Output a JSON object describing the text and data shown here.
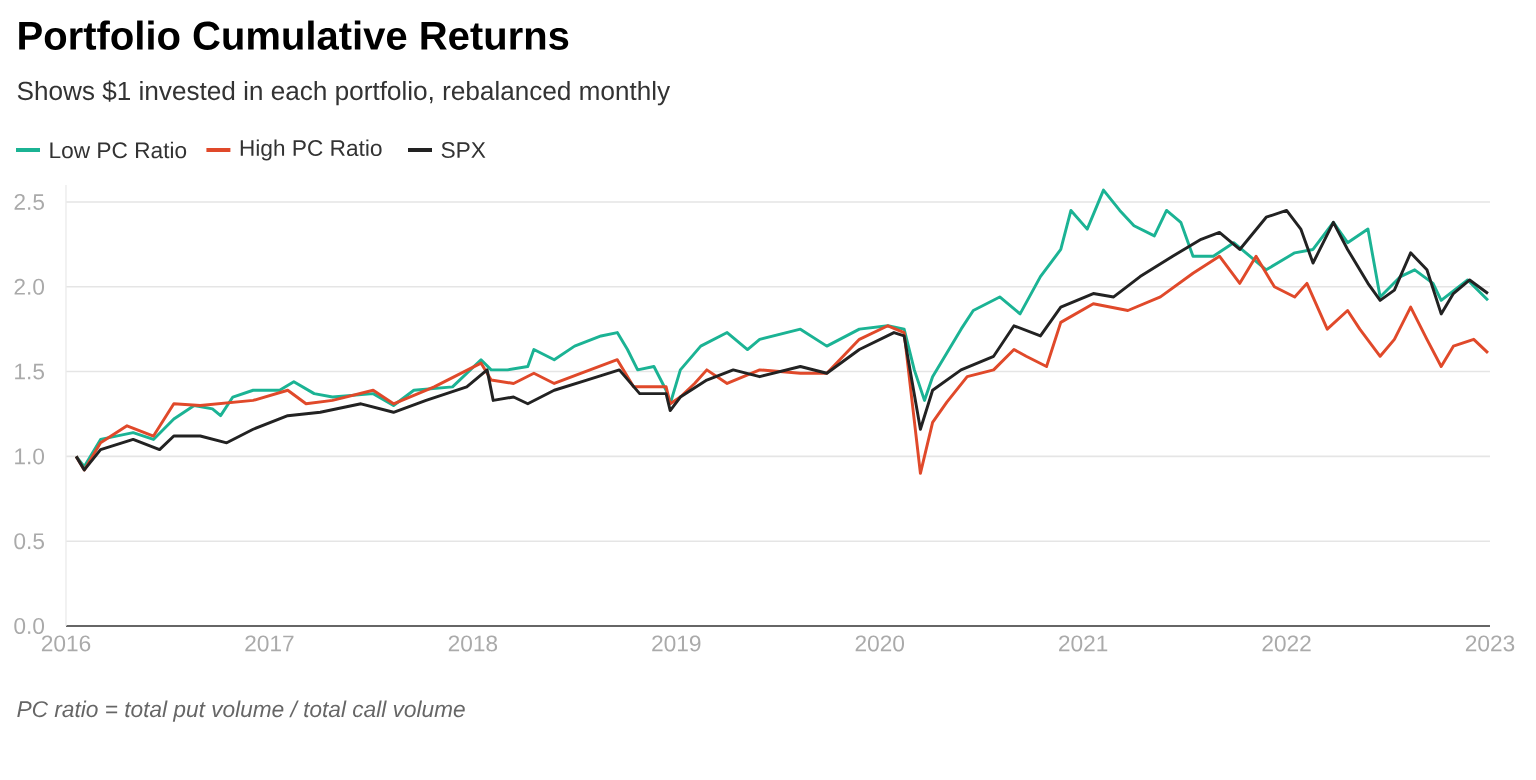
{
  "chart_data": {
    "type": "line",
    "title": "Portfolio Cumulative Returns",
    "subtitle": "Shows $1 invested in each portfolio, rebalanced monthly",
    "annotations": [
      "*PC ratio = total put volume / total call volume*"
    ],
    "legend": "top left",
    "grid": "y",
    "xlim": [
      2016,
      2023
    ],
    "xticks": [
      2016,
      2017,
      2018,
      2019,
      2020,
      2021,
      2022,
      2023
    ],
    "ylim": [
      0,
      2.6
    ],
    "yticks": [
      {
        "value": 0,
        "label": "0.0"
      },
      0.5,
      {
        "value": 1,
        "label": "1.0"
      },
      1.5,
      {
        "value": 2,
        "label": "2.0"
      },
      2.5
    ],
    "series": [
      {
        "name": "Low PC Ratio",
        "color": "#1bb394",
        "x": [
          2016.05,
          2016.09,
          2016.17,
          2016.33,
          2016.43,
          2016.53,
          2016.63,
          2016.72,
          2016.76,
          2016.82,
          2016.92,
          2017.05,
          2017.12,
          2017.22,
          2017.31,
          2017.51,
          2017.61,
          2017.71,
          2017.9,
          2018.04,
          2018.09,
          2018.17,
          2018.27,
          2018.3,
          2018.4,
          2018.5,
          2018.63,
          2018.71,
          2018.76,
          2018.81,
          2018.89,
          2018.95,
          2018.97,
          2019.02,
          2019.12,
          2019.25,
          2019.35,
          2019.41,
          2019.61,
          2019.74,
          2019.9,
          2020.04,
          2020.12,
          2020.17,
          2020.22,
          2020.26,
          2020.4,
          2020.46,
          2020.59,
          2020.69,
          2020.79,
          2020.89,
          2020.94,
          2021.02,
          2021.1,
          2021.18,
          2021.25,
          2021.35,
          2021.41,
          2021.48,
          2021.54,
          2021.64,
          2021.74,
          2021.9,
          2022.04,
          2022.13,
          2022.23,
          2022.3,
          2022.4,
          2022.46,
          2022.56,
          2022.63,
          2022.72,
          2022.76,
          2022.89,
          2022.99
        ],
        "values": [
          1.0,
          0.94,
          1.1,
          1.14,
          1.1,
          1.22,
          1.3,
          1.28,
          1.24,
          1.35,
          1.39,
          1.39,
          1.44,
          1.37,
          1.35,
          1.37,
          1.3,
          1.39,
          1.41,
          1.57,
          1.51,
          1.51,
          1.53,
          1.63,
          1.57,
          1.65,
          1.71,
          1.73,
          1.63,
          1.51,
          1.53,
          1.39,
          1.31,
          1.51,
          1.65,
          1.73,
          1.63,
          1.69,
          1.75,
          1.65,
          1.75,
          1.77,
          1.75,
          1.51,
          1.33,
          1.47,
          1.75,
          1.86,
          1.94,
          1.84,
          2.06,
          2.22,
          2.45,
          2.34,
          2.57,
          2.45,
          2.36,
          2.3,
          2.45,
          2.38,
          2.18,
          2.18,
          2.26,
          2.1,
          2.2,
          2.22,
          2.38,
          2.26,
          2.34,
          1.94,
          2.06,
          2.1,
          2.02,
          1.92,
          2.04,
          1.92
        ]
      },
      {
        "name": "High PC Ratio",
        "color": "#e0492a",
        "x": [
          2016.05,
          2016.09,
          2016.17,
          2016.3,
          2016.43,
          2016.53,
          2016.66,
          2016.92,
          2017.09,
          2017.18,
          2017.31,
          2017.51,
          2017.61,
          2017.81,
          2018.04,
          2018.09,
          2018.2,
          2018.3,
          2018.4,
          2018.53,
          2018.71,
          2018.79,
          2018.95,
          2018.97,
          2019.02,
          2019.09,
          2019.15,
          2019.25,
          2019.41,
          2019.61,
          2019.74,
          2019.9,
          2020.04,
          2020.12,
          2020.2,
          2020.26,
          2020.33,
          2020.43,
          2020.56,
          2020.66,
          2020.72,
          2020.82,
          2020.89,
          2021.05,
          2021.22,
          2021.38,
          2021.54,
          2021.67,
          2021.77,
          2021.85,
          2021.94,
          2022.04,
          2022.1,
          2022.2,
          2022.3,
          2022.36,
          2022.46,
          2022.53,
          2022.61,
          2022.69,
          2022.76,
          2022.82,
          2022.92,
          2022.99
        ],
        "values": [
          1.0,
          0.92,
          1.08,
          1.18,
          1.12,
          1.31,
          1.3,
          1.33,
          1.39,
          1.31,
          1.33,
          1.39,
          1.31,
          1.41,
          1.55,
          1.45,
          1.43,
          1.49,
          1.43,
          1.49,
          1.57,
          1.41,
          1.41,
          1.31,
          1.35,
          1.43,
          1.51,
          1.43,
          1.51,
          1.49,
          1.49,
          1.69,
          1.77,
          1.73,
          0.9,
          1.2,
          1.32,
          1.47,
          1.51,
          1.63,
          1.59,
          1.53,
          1.79,
          1.9,
          1.86,
          1.94,
          2.08,
          2.18,
          2.02,
          2.18,
          2.0,
          1.94,
          2.02,
          1.75,
          1.86,
          1.75,
          1.59,
          1.69,
          1.88,
          1.69,
          1.53,
          1.65,
          1.69,
          1.61
        ]
      },
      {
        "name": "SPX",
        "color": "#222222",
        "x": [
          2016.05,
          2016.09,
          2016.17,
          2016.33,
          2016.46,
          2016.53,
          2016.66,
          2016.79,
          2016.92,
          2017.09,
          2017.25,
          2017.45,
          2017.61,
          2017.77,
          2017.97,
          2018.07,
          2018.1,
          2018.2,
          2018.27,
          2018.4,
          2018.56,
          2018.72,
          2018.82,
          2018.95,
          2018.97,
          2019.02,
          2019.15,
          2019.28,
          2019.41,
          2019.61,
          2019.74,
          2019.9,
          2020.07,
          2020.12,
          2020.2,
          2020.26,
          2020.4,
          2020.56,
          2020.66,
          2020.79,
          2020.89,
          2021.05,
          2021.15,
          2021.28,
          2021.44,
          2021.58,
          2021.67,
          2021.77,
          2021.9,
          2022.0,
          2022.07,
          2022.13,
          2022.23,
          2022.3,
          2022.4,
          2022.46,
          2022.53,
          2022.61,
          2022.69,
          2022.76,
          2022.82,
          2022.9,
          2022.99
        ],
        "values": [
          1.0,
          0.92,
          1.04,
          1.1,
          1.04,
          1.12,
          1.12,
          1.08,
          1.16,
          1.24,
          1.26,
          1.31,
          1.26,
          1.33,
          1.41,
          1.51,
          1.33,
          1.35,
          1.31,
          1.39,
          1.45,
          1.51,
          1.37,
          1.37,
          1.27,
          1.35,
          1.45,
          1.51,
          1.47,
          1.53,
          1.49,
          1.63,
          1.73,
          1.71,
          1.16,
          1.39,
          1.51,
          1.59,
          1.77,
          1.71,
          1.88,
          1.96,
          1.94,
          2.06,
          2.18,
          2.28,
          2.32,
          2.22,
          2.41,
          2.45,
          2.34,
          2.14,
          2.38,
          2.22,
          2.02,
          1.92,
          1.98,
          2.2,
          2.1,
          1.84,
          1.96,
          2.04,
          1.96
        ]
      }
    ]
  }
}
